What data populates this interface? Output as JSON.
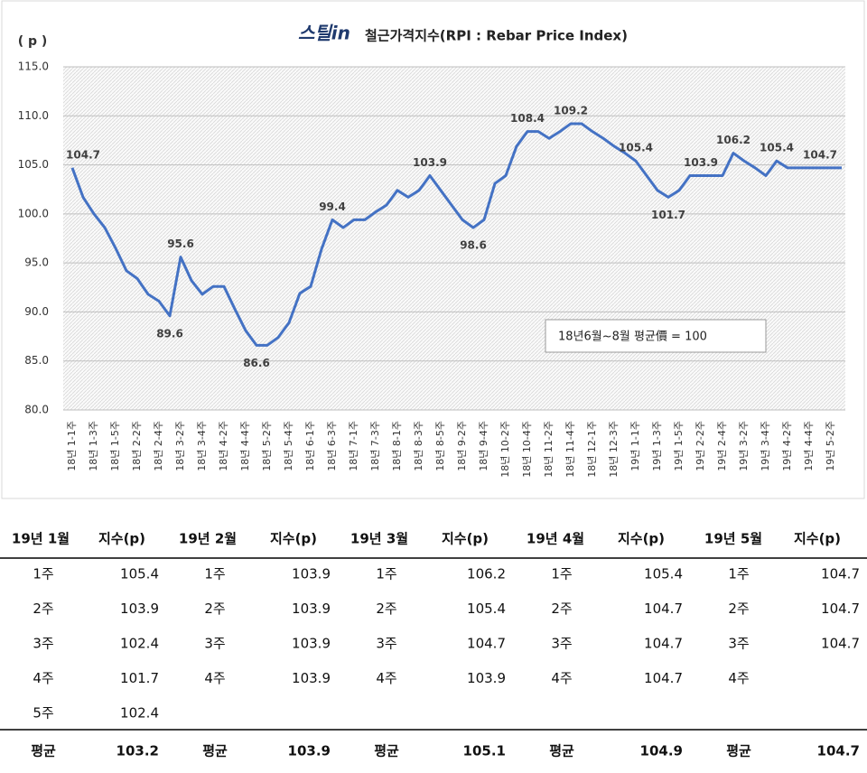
{
  "chart_data": {
    "type": "line",
    "logo": "스틸in",
    "title": "철근가격지수(RPI : Rebar Price Index)",
    "y_label": "( p )",
    "annotation": "18년6월~8월 평균價 = 100",
    "categories": [
      "18년 1-1주",
      null,
      "18년 1-3주",
      null,
      "18년 1-5주",
      null,
      "18년 2-2주",
      null,
      "18년 2-4주",
      null,
      "18년 3-2주",
      null,
      "18년 3-4주",
      null,
      "18년 4-2주",
      null,
      "18년 4-4주",
      null,
      "18년 5-2주",
      null,
      "18년 5-4주",
      null,
      "18년 6-1주",
      null,
      "18년 6-3주",
      null,
      "18년 7-1주",
      null,
      "18년 7-3주",
      null,
      "18년 8-1주",
      null,
      "18년 8-3주",
      null,
      "18년 8-5주",
      null,
      "18년 9-2주",
      null,
      "18년 9-4주",
      null,
      "18년 10-2주",
      null,
      "18년 10-4주",
      null,
      "18년 11-2주",
      null,
      "18년 11-4주",
      null,
      "18년 12-1주",
      null,
      "18년 12-3주",
      null,
      "19년 1-1주",
      null,
      "19년 1-3주",
      null,
      "19년 1-5주",
      null,
      "19년 2-2주",
      null,
      "19년 2-4주",
      null,
      "19년 3-2주",
      null,
      "19년 3-4주",
      null,
      "19년 4-2주",
      null,
      "19년 4-4주",
      null,
      "19년 5-2주",
      null
    ],
    "series": [
      {
        "name": "RPI",
        "color": "#4472c4",
        "values": [
          104.7,
          101.7,
          100.0,
          98.6,
          96.5,
          94.2,
          93.4,
          91.8,
          91.1,
          89.6,
          95.6,
          93.2,
          91.8,
          92.6,
          92.6,
          90.3,
          88.1,
          86.6,
          86.6,
          87.4,
          88.9,
          91.9,
          92.6,
          96.4,
          99.4,
          98.6,
          99.4,
          99.4,
          100.2,
          100.9,
          102.4,
          101.7,
          102.4,
          103.9,
          102.4,
          100.9,
          99.4,
          98.6,
          99.4,
          103.1,
          103.9,
          106.9,
          108.4,
          108.4,
          107.7,
          108.4,
          109.2,
          109.2,
          108.4,
          107.7,
          106.9,
          106.2,
          105.4,
          103.9,
          102.4,
          101.7,
          102.4,
          103.9,
          103.9,
          103.9,
          103.9,
          106.2,
          105.4,
          104.7,
          103.9,
          105.4,
          104.7,
          104.7,
          104.7,
          104.7,
          104.7,
          104.7
        ],
        "value_labels": [
          "104.7",
          null,
          null,
          null,
          null,
          null,
          null,
          null,
          null,
          "89.6",
          "95.6",
          null,
          null,
          null,
          null,
          null,
          null,
          "86.6",
          null,
          null,
          null,
          null,
          null,
          null,
          "99.4",
          null,
          null,
          null,
          null,
          null,
          null,
          null,
          null,
          "103.9",
          null,
          null,
          null,
          "98.6",
          null,
          null,
          null,
          null,
          "108.4",
          null,
          null,
          null,
          "109.2",
          null,
          null,
          null,
          null,
          null,
          "105.4",
          null,
          null,
          "101.7",
          null,
          null,
          "103.9",
          null,
          null,
          "106.2",
          null,
          null,
          null,
          "105.4",
          null,
          null,
          null,
          "104.7",
          null,
          null
        ]
      }
    ],
    "ylim": [
      80,
      115
    ],
    "yticks": [
      {
        "value": 80,
        "label": "80.0"
      },
      {
        "value": 85,
        "label": "85.0"
      },
      {
        "value": 90,
        "label": "90.0"
      },
      {
        "value": 95,
        "label": "95.0"
      },
      {
        "value": 100,
        "label": "100.0"
      },
      {
        "value": 105,
        "label": "105.0"
      },
      {
        "value": 110,
        "label": "110.0"
      },
      {
        "value": 115,
        "label": "115.0"
      }
    ],
    "grid": true
  },
  "table": {
    "header": [
      "19년 1월",
      "지수(p)",
      "19년 2월",
      "지수(p)",
      "19년 3월",
      "지수(p)",
      "19년 4월",
      "지수(p)",
      "19년 5월",
      "지수(p)"
    ],
    "rows": [
      [
        "1주",
        105.4,
        "1주",
        103.9,
        "1주",
        106.2,
        "1주",
        105.4,
        "1주",
        104.7
      ],
      [
        "2주",
        103.9,
        "2주",
        103.9,
        "2주",
        105.4,
        "2주",
        104.7,
        "2주",
        104.7
      ],
      [
        "3주",
        102.4,
        "3주",
        103.9,
        "3주",
        104.7,
        "3주",
        104.7,
        "3주",
        104.7
      ],
      [
        "4주",
        101.7,
        "4주",
        103.9,
        "4주",
        103.9,
        "4주",
        104.7,
        "4주",
        null
      ],
      [
        "5주",
        102.4,
        null,
        null,
        null,
        null,
        null,
        null,
        null,
        null
      ]
    ],
    "footer": [
      "평균",
      103.2,
      "평균",
      103.9,
      "평균",
      105.1,
      "평균",
      104.9,
      "평균",
      104.7
    ]
  }
}
